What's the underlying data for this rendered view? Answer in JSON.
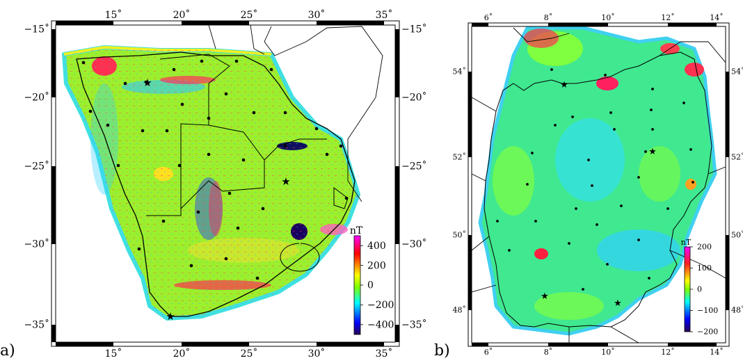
{
  "panels": [
    {
      "id": "a",
      "label": "a)",
      "lon_ticks": [
        "15˚",
        "20˚",
        "25˚",
        "30˚",
        "35˚"
      ],
      "lat_ticks": [
        "−15˚",
        "−20˚",
        "−25˚",
        "−30˚",
        "−35˚"
      ],
      "colorbar": {
        "unit": "nT",
        "tick_labels": [
          "400",
          "200",
          "0",
          "−200",
          "−400"
        ],
        "range": [
          -500,
          500
        ],
        "palette": [
          "#ff00ff",
          "#ff0000",
          "#ffff00",
          "#7fff00",
          "#00ffff",
          "#0000ff",
          "#2a0055"
        ]
      },
      "stations": 34,
      "stars": 3
    },
    {
      "id": "b",
      "label": "b)",
      "lon_ticks": [
        "6˚",
        "8˚",
        "10˚",
        "12˚",
        "14˚"
      ],
      "lat_ticks": [
        "54˚",
        "52˚",
        "50˚",
        "48˚"
      ],
      "colorbar": {
        "unit": "nT",
        "tick_labels": [
          "200",
          "100",
          "0",
          "−100",
          "−200"
        ],
        "range": [
          -200,
          200
        ],
        "palette": [
          "#ff00ff",
          "#ff0000",
          "#ffff00",
          "#7fff00",
          "#00ffff",
          "#0000ff",
          "#2a0055"
        ]
      },
      "stations": 30,
      "stars": 4
    }
  ]
}
